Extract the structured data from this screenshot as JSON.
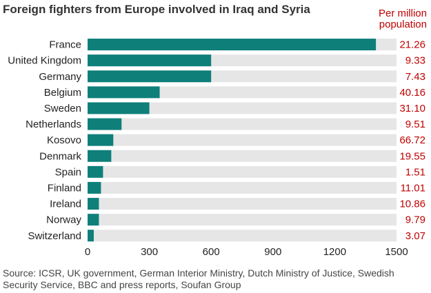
{
  "title": "Foreign fighters from Europe involved in Iraq and Syria",
  "per_million_header": {
    "line1": "Per million",
    "line2": "population"
  },
  "source": "Source: ICSR, UK government, German Interior Ministry, Dutch Ministry of Justice, Swedish Security Service, BBC and press reports, Soufan Group",
  "colors": {
    "bar": "#0f7f7a",
    "track": "#e6e6e6",
    "accent": "#c00000",
    "text": "#222222"
  },
  "chart_data": {
    "type": "bar",
    "orientation": "horizontal",
    "categories": [
      "France",
      "United Kingdom",
      "Germany",
      "Belgium",
      "Sweden",
      "Netherlands",
      "Kosovo",
      "Denmark",
      "Spain",
      "Finland",
      "Ireland",
      "Norway",
      "Switzerland"
    ],
    "values": [
      1400,
      600,
      600,
      350,
      300,
      165,
      125,
      115,
      75,
      65,
      55,
      55,
      30
    ],
    "per_million": [
      "21.26",
      "9.33",
      "7.43",
      "40.16",
      "31.10",
      "9.51",
      "66.72",
      "19.55",
      "1.51",
      "11.01",
      "10.86",
      "9.79",
      "3.07"
    ],
    "xlim": [
      0,
      1500
    ],
    "xticks": [
      "0",
      "300",
      "600",
      "900",
      "1200",
      "1500"
    ],
    "grid": false,
    "legend": "none"
  }
}
